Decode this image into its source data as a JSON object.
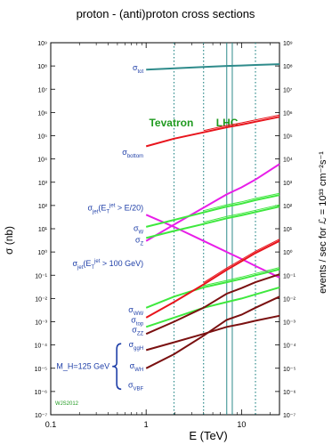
{
  "chart_data": {
    "type": "line",
    "title": "proton - (anti)proton cross sections",
    "xlabel": "E  (TeV)",
    "ylabel_left": "σ  (nb)",
    "ylabel_right": "events / sec for ℒ = 10³³ cm⁻²s⁻¹",
    "x_scale": "log",
    "y_scale": "log",
    "xlim": [
      0.1,
      25
    ],
    "ylim": [
      1e-07,
      1000000000.0
    ],
    "x_ticks": [
      "0.1",
      "1",
      "10"
    ],
    "y_ticks_left": [
      "10⁻⁷",
      "10⁻⁶",
      "10⁻⁵",
      "10⁻⁴",
      "10⁻³",
      "10⁻²",
      "10⁻¹",
      "10⁰",
      "10¹",
      "10²",
      "10³",
      "10⁴",
      "10⁵",
      "10⁶",
      "10⁷",
      "10⁸",
      "10⁹"
    ],
    "y_ticks_right": [
      "10⁻⁷",
      "10⁻⁶",
      "10⁻⁵",
      "10⁻⁴",
      "10⁻³",
      "10⁻²",
      "10⁻¹",
      "10⁰",
      "10¹",
      "10²",
      "10³",
      "10⁴",
      "10⁵",
      "10⁶",
      "10⁷",
      "10⁸",
      "10⁹"
    ],
    "vertical_markers": [
      {
        "label": "Tevatron",
        "x": 1.96,
        "style": "dotted"
      },
      {
        "label": "",
        "x": 4,
        "style": "dotted"
      },
      {
        "label": "LHC",
        "x": 7,
        "style": "solid"
      },
      {
        "label": "",
        "x": 8,
        "style": "solid"
      },
      {
        "label": "",
        "x": 14,
        "style": "dotted"
      }
    ],
    "footnote": "WJS2012",
    "higgs_group_label": "M_H=125 GeV",
    "series": [
      {
        "name": "σtot",
        "color": "#2e8b8b",
        "x": [
          1,
          2,
          4,
          7,
          10,
          14,
          25
        ],
        "y": [
          70000000.0,
          80000000.0,
          90000000.0,
          100000000.0,
          105000000.0,
          110000000.0,
          120000000.0
        ]
      },
      {
        "name": "σbottom",
        "color": "#e8141c",
        "x": [
          1,
          1.96,
          4,
          7,
          10,
          14,
          25
        ],
        "y": [
          35000.0,
          75000.0,
          140000.0,
          230000.0,
          300000.0,
          400000.0,
          650000.0
        ]
      },
      {
        "name": "σjet(ET jet > E/20)",
        "color": "#e81ee8",
        "x": [
          1,
          1.96,
          4,
          7,
          10,
          14,
          25
        ],
        "y": [
          3,
          15,
          80,
          300,
          600,
          1300,
          6000
        ]
      },
      {
        "name": "σjet(ET jet > 100 GeV)",
        "color": "#e81ee8",
        "x": [
          1,
          1.96,
          4,
          7,
          10,
          14,
          25
        ],
        "y": [
          40,
          12,
          3,
          1,
          0.5,
          0.25,
          0.08
        ]
      },
      {
        "name": "σW",
        "color": "#3ee83e",
        "x": [
          1,
          1.96,
          4,
          7,
          10,
          14,
          25
        ],
        "y": [
          12,
          24,
          50,
          90,
          120,
          170,
          280
        ]
      },
      {
        "name": "σZ",
        "color": "#3ee83e",
        "x": [
          1,
          1.96,
          4,
          7,
          10,
          14,
          25
        ],
        "y": [
          4,
          8,
          16,
          28,
          38,
          52,
          90
        ]
      },
      {
        "name": "σWW",
        "color": "#3ee83e",
        "x": [
          1,
          1.96,
          4,
          7,
          10,
          14,
          25
        ],
        "y": [
          0.004,
          0.012,
          0.03,
          0.05,
          0.07,
          0.1,
          0.18
        ]
      },
      {
        "name": "σZZ",
        "color": "#3ee83e",
        "x": [
          1,
          1.96,
          4,
          7,
          10,
          14,
          25
        ],
        "y": [
          0.0006,
          0.0015,
          0.004,
          0.007,
          0.01,
          0.015,
          0.03
        ]
      },
      {
        "name": "σtop",
        "color": "#e8141c",
        "x": [
          1,
          1.96,
          4,
          7,
          10,
          14,
          25
        ],
        "y": [
          0.0015,
          0.007,
          0.04,
          0.17,
          0.4,
          0.9,
          3
        ]
      },
      {
        "name": "σggH",
        "color": "#7a1010",
        "x": [
          1,
          1.96,
          4,
          7,
          10,
          14,
          25
        ],
        "y": [
          0.0003,
          0.001,
          0.004,
          0.016,
          0.028,
          0.05,
          0.11
        ]
      },
      {
        "name": "σWH",
        "color": "#7a1010",
        "x": [
          1,
          1.96,
          4,
          7,
          10,
          14,
          25
        ],
        "y": [
          6e-05,
          0.00013,
          0.0003,
          0.0006,
          0.0008,
          0.0011,
          0.0018
        ]
      },
      {
        "name": "σVBF",
        "color": "#7a1010",
        "x": [
          1,
          1.96,
          4,
          7,
          10,
          14,
          25
        ],
        "y": [
          1e-05,
          4e-05,
          0.00025,
          0.0012,
          0.002,
          0.004,
          0.012
        ]
      }
    ],
    "series_labels": [
      {
        "text": "σ",
        "sub": "tot",
        "series": "σtot",
        "y": 65000000.0
      },
      {
        "text": "σ",
        "sub": "bottom",
        "series": "σbottom",
        "y": 15000.0
      },
      {
        "text": "σ",
        "sub": "jet",
        "after": "(E",
        "sub2": "T",
        "sup2": "jet",
        "tail": " > E/20)",
        "y": 60
      },
      {
        "text": "σ",
        "sub": "W",
        "y": 8
      },
      {
        "text": "σ",
        "sub": "Z",
        "y": 2.5
      },
      {
        "text": "σ",
        "sub": "jet",
        "after": "(E",
        "sub2": "T",
        "sup2": "jet",
        "tail": " > 100 GeV)",
        "y": 0.25
      },
      {
        "text": "σ",
        "sub": "WW",
        "y": 0.0025
      },
      {
        "text": "σ",
        "sub": "top",
        "y": 0.0009
      },
      {
        "text": "σ",
        "sub": "ZZ",
        "y": 0.00035
      },
      {
        "text": "σ",
        "sub": "ggH",
        "y": 8e-05
      },
      {
        "text": "σ",
        "sub": "WH",
        "y": 1e-05
      },
      {
        "text": "σ",
        "sub": "VBF",
        "y": 1.5e-06
      }
    ]
  }
}
